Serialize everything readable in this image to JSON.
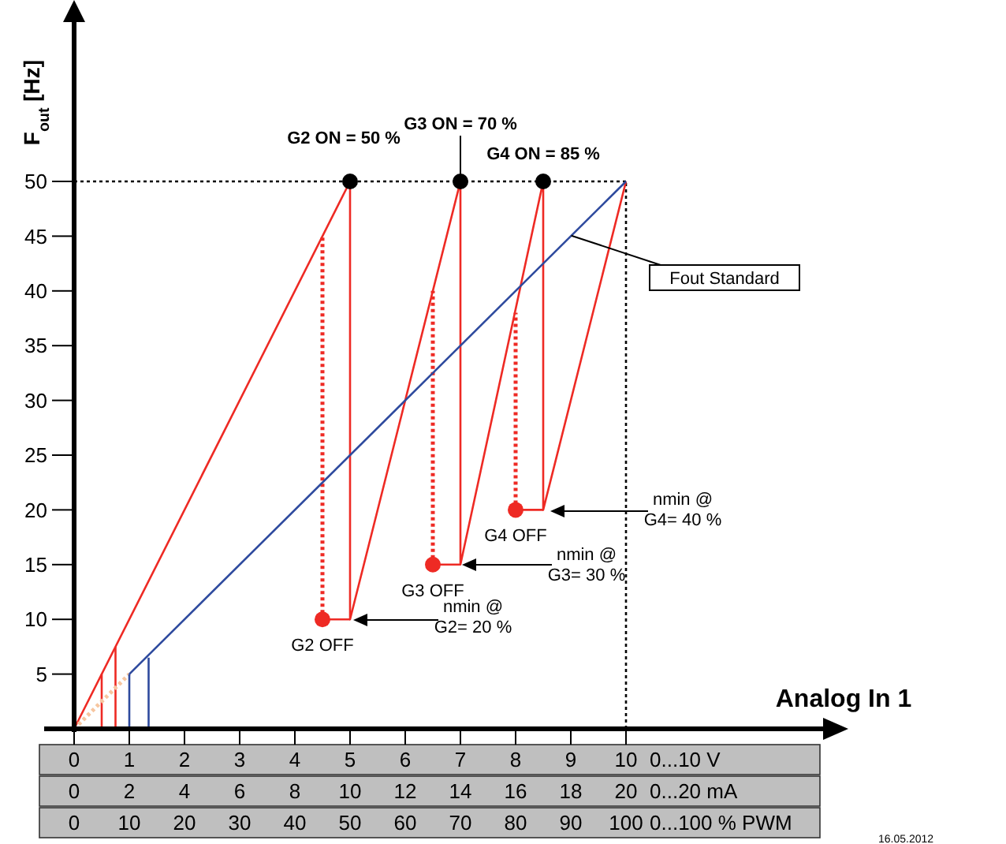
{
  "chart_data": {
    "type": "line",
    "ylabel": "F$_{out}$ [Hz]",
    "xlabel": "0...10 V",
    "x2label": "0...20 mA",
    "xlim": [
      0,
      10
    ],
    "xticks": [
      0,
      1,
      2,
      3,
      4,
      5,
      6,
      7,
      8,
      9,
      10
    ],
    "x2lim": [
      0,
      20
    ],
    "x2ticks": [
      0,
      2,
      4,
      6,
      8,
      10,
      12,
      14,
      16,
      18,
      20
    ],
    "ylim": [
      0,
      50
    ],
    "yticks": [
      5,
      10,
      15,
      20,
      25,
      30,
      35,
      40,
      45,
      50
    ],
    "series": [
      {
        "color": "#ee2a24",
        "x": [
          0,
          5,
          5,
          7,
          7,
          8.5,
          8.5,
          10
        ],
        "values": [
          0,
          50,
          10,
          50,
          15,
          50,
          20,
          50
        ]
      },
      {
        "color": "#ee2a24",
        "line_style": "dotted",
        "x": [
          4.5,
          4.5
        ],
        "values": [
          10,
          45
        ]
      },
      {
        "color": "#ee2a24",
        "line_style": "dotted",
        "x": [
          6.5,
          6.5
        ],
        "values": [
          15,
          40
        ]
      },
      {
        "color": "#ee2a24",
        "line_style": "dotted",
        "x": [
          8,
          8
        ],
        "values": [
          20,
          38
        ]
      },
      {
        "color": "#ee2a24",
        "x": [
          5,
          4.5
        ],
        "values": [
          10,
          10
        ]
      },
      {
        "color": "#ee2a24",
        "x": [
          7,
          6.5
        ],
        "values": [
          15,
          15
        ]
      },
      {
        "color": "#ee2a24",
        "x": [
          8.5,
          8
        ],
        "values": [
          20,
          20
        ]
      },
      {
        "color": "#ee2a24",
        "x": [
          0.5,
          0.5
        ],
        "values": [
          5,
          0
        ]
      },
      {
        "color": "#ee2a24",
        "x": [
          0.75,
          0.75
        ],
        "values": [
          0,
          7.5
        ]
      },
      {
        "color": "#f7c6a0",
        "line_style": "dotted",
        "x": [
          0,
          1
        ],
        "values": [
          0,
          5
        ]
      },
      {
        "name": "Fout Standard",
        "color": "#2e4a9e",
        "x": [
          1,
          10
        ],
        "values": [
          5,
          50
        ]
      },
      {
        "color": "#2e4a9e",
        "x": [
          1,
          1
        ],
        "values": [
          5,
          0
        ]
      },
      {
        "color": "#2e4a9e",
        "x": [
          1.35,
          1.35
        ],
        "values": [
          0,
          6.5
        ]
      },
      {
        "type": "scatter",
        "color": "#000000",
        "x": [
          5,
          7,
          8.5
        ],
        "values": [
          50,
          50,
          50
        ]
      },
      {
        "type": "scatter",
        "color": "#ee2a24",
        "x": [
          4.5,
          6.5,
          8
        ],
        "values": [
          10,
          15,
          20
        ]
      }
    ],
    "ref_lines": [
      {
        "axis": "y",
        "value": 50,
        "color": "#000000",
        "line_style": "dotted"
      },
      {
        "axis": "x",
        "value": 10,
        "color": "#000000",
        "line_style": "dotted"
      }
    ],
    "annotations": [
      {
        "text": "G2 ON = 50 %",
        "x": 5,
        "y": 50
      },
      {
        "text": "G3 ON = 70 %",
        "x": 7,
        "y": 50
      },
      {
        "text": "G4 ON = 85 %",
        "x": 8.5,
        "y": 50
      },
      {
        "text": "G2 OFF",
        "x": 4.5,
        "y": 10
      },
      {
        "text": "G3 OFF",
        "x": 6.5,
        "y": 15
      },
      {
        "text": "G4 OFF",
        "x": 8,
        "y": 20
      },
      "Analog In 1",
      "16.05.2012",
      "0...100 % PWM",
      "0",
      "10",
      "20",
      "30",
      "40",
      "50",
      "60",
      "70",
      "80",
      "90",
      "100",
      "nmin @\nG2= 20 %",
      "nmin @\nG3= 30 %",
      "nmin @\nG4= 40 %"
    ]
  }
}
